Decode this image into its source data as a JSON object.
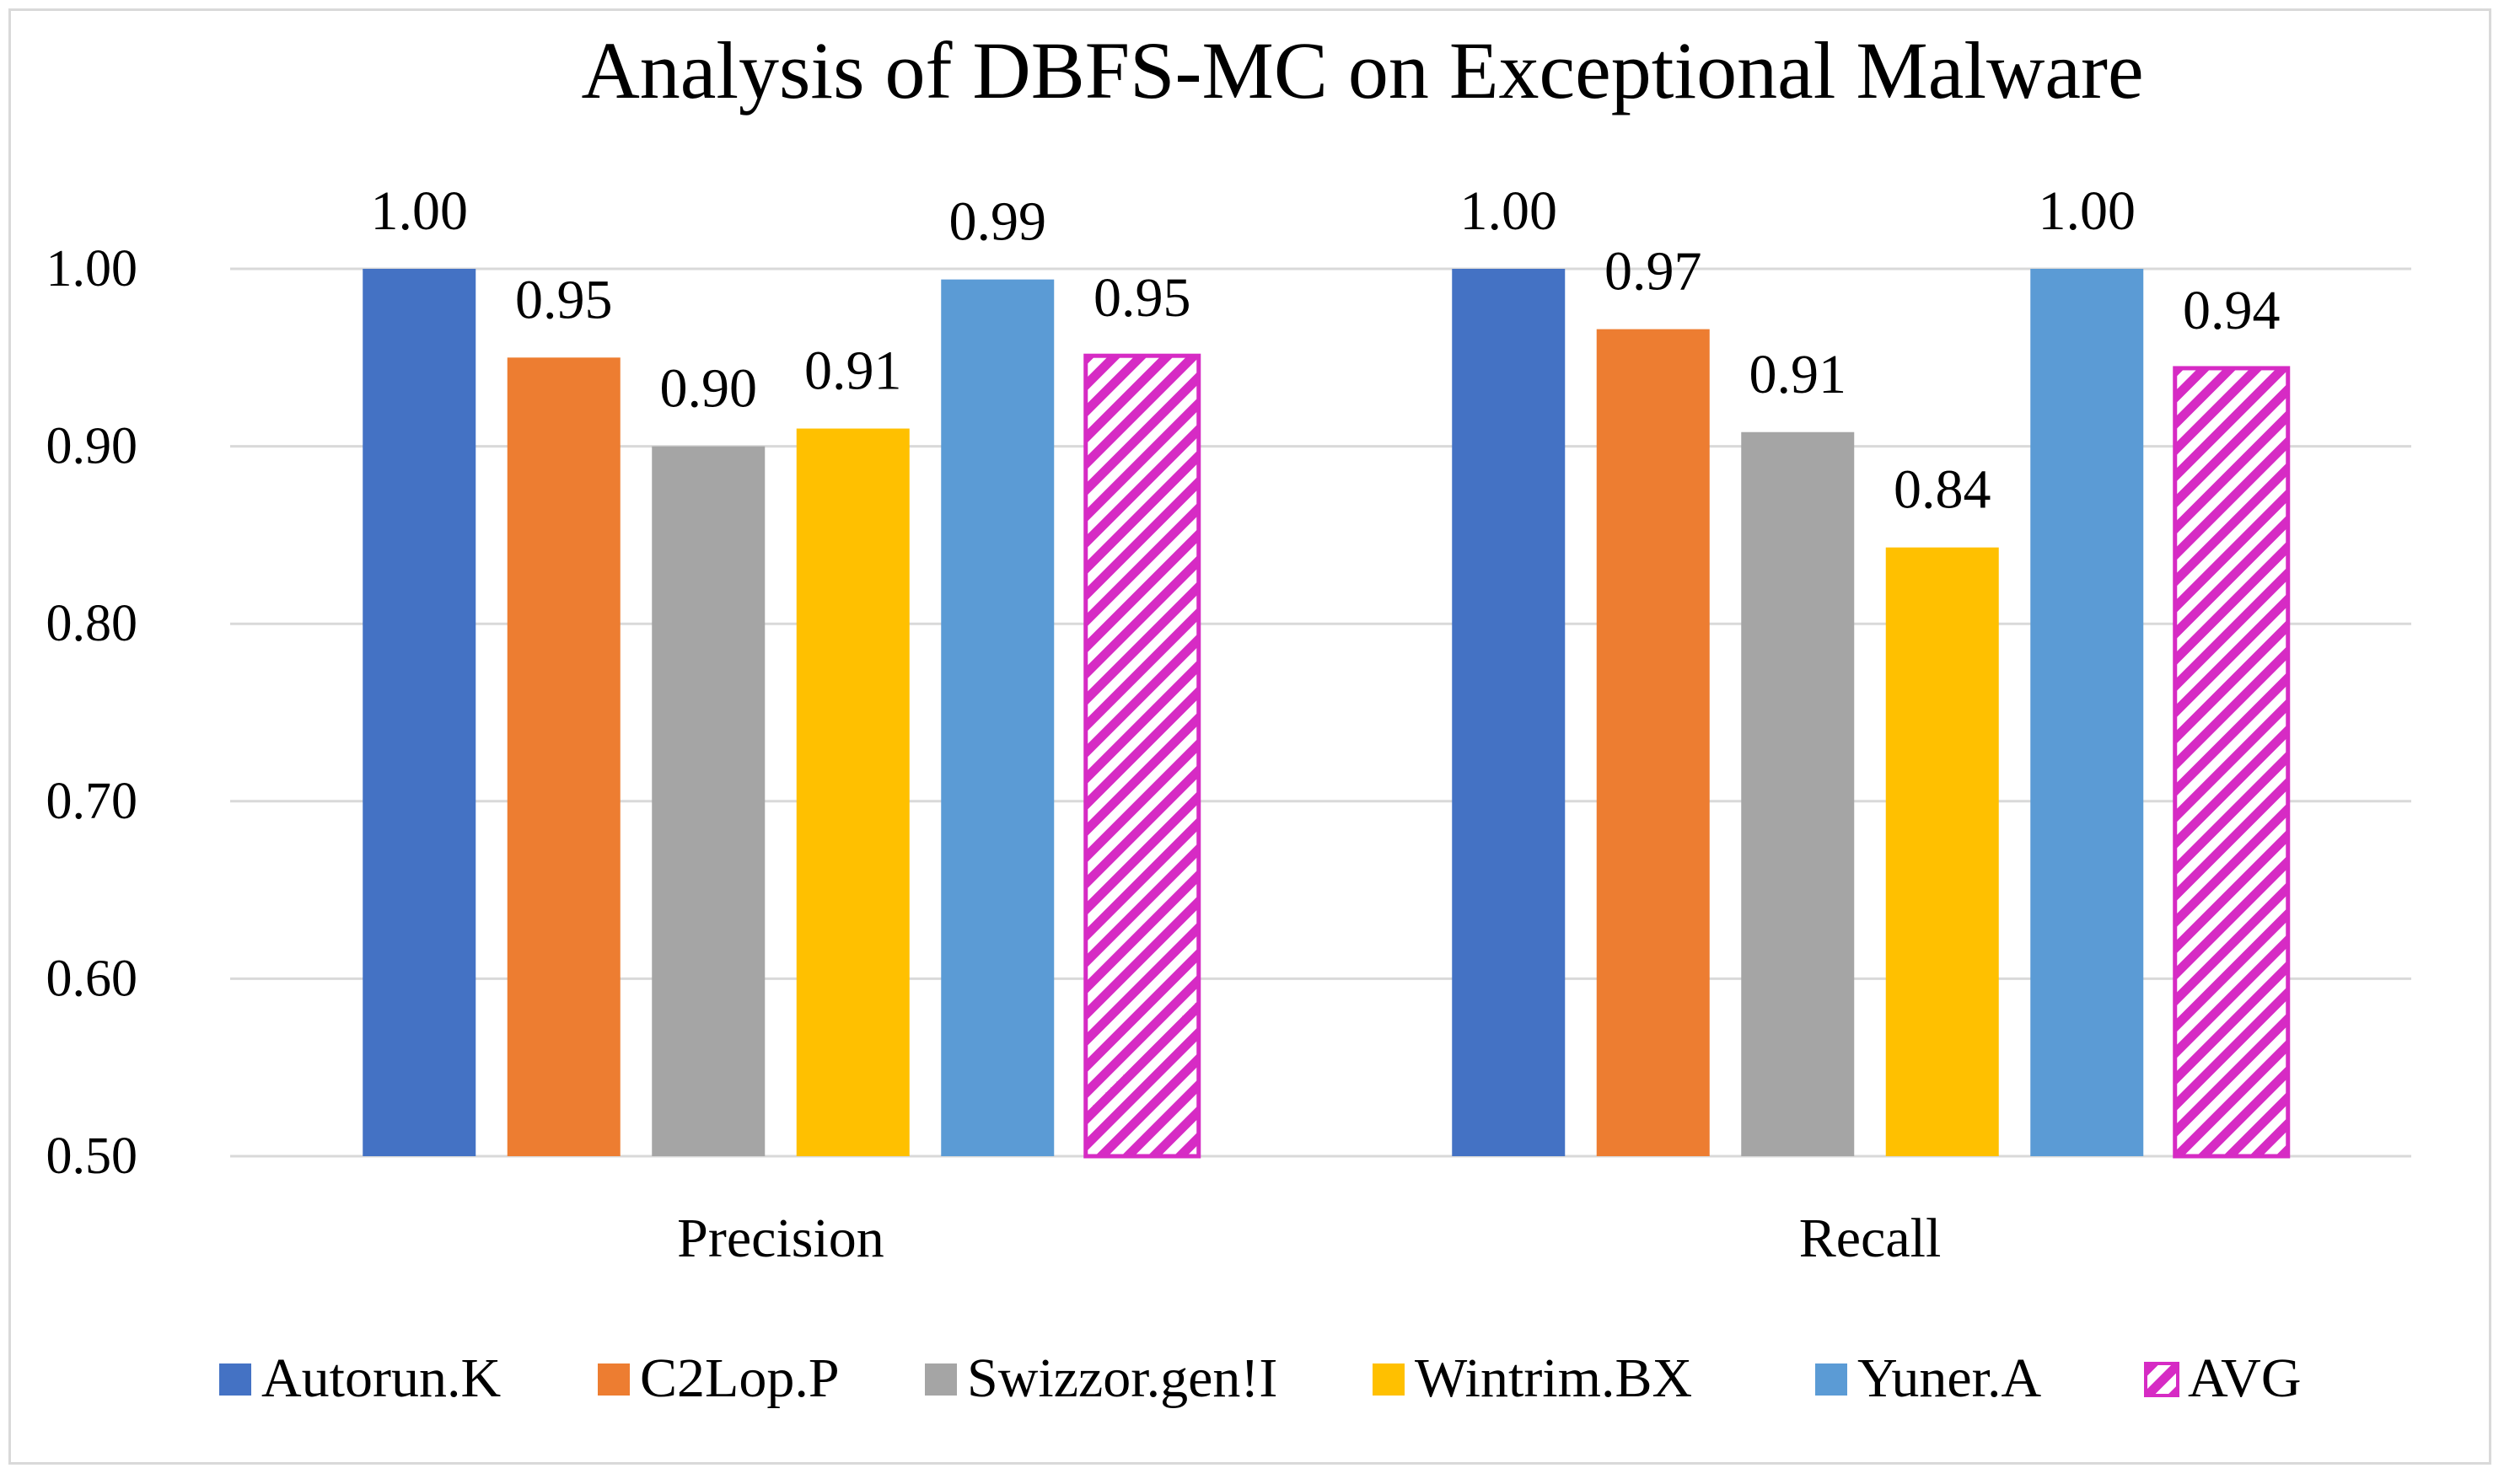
{
  "chart_data": {
    "type": "bar",
    "title": "Analysis of DBFS-MC on Exceptional Malware",
    "xlabel": "",
    "ylabel": "",
    "categories": [
      "Precision",
      "Recall"
    ],
    "ylim": [
      0.5,
      1.0
    ],
    "yticks": [
      0.5,
      0.6,
      0.7,
      0.8,
      0.9,
      1.0
    ],
    "ytick_labels": [
      "0.50",
      "0.60",
      "0.70",
      "0.80",
      "0.90",
      "1.00"
    ],
    "grid": true,
    "legend_position": "bottom",
    "series": [
      {
        "name": "Autorun.K",
        "color": "#4472C4",
        "pattern": "solid",
        "values": [
          1.0,
          1.0
        ],
        "labels": [
          "1.00",
          "1.00"
        ]
      },
      {
        "name": "C2Lop.P",
        "color": "#ED7D31",
        "pattern": "solid",
        "values": [
          0.95,
          0.966
        ],
        "labels": [
          "0.95",
          "0.97"
        ]
      },
      {
        "name": "Swizzor.gen!I",
        "color": "#A5A5A5",
        "pattern": "solid",
        "values": [
          0.9,
          0.908
        ],
        "labels": [
          "0.90",
          "0.91"
        ]
      },
      {
        "name": "Wintrim.BX",
        "color": "#FFC000",
        "pattern": "solid",
        "values": [
          0.91,
          0.843
        ],
        "labels": [
          "0.91",
          "0.84"
        ]
      },
      {
        "name": "Yuner.A",
        "color": "#5B9BD5",
        "pattern": "solid",
        "values": [
          0.994,
          1.0
        ],
        "labels": [
          "0.99",
          "1.00"
        ]
      },
      {
        "name": "AVG",
        "color": "#D62BC4",
        "pattern": "diagonal-hatch",
        "values": [
          0.951,
          0.944
        ],
        "labels": [
          "0.95",
          "0.94"
        ]
      }
    ]
  }
}
